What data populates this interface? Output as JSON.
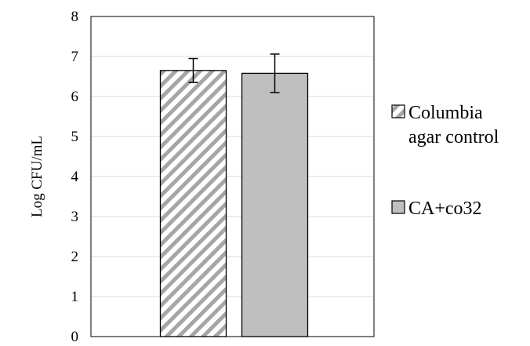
{
  "chart_data": {
    "type": "bar",
    "categories": [
      ""
    ],
    "series": [
      {
        "name": "Columbia agar control",
        "values": [
          6.65
        ],
        "error": [
          0.3
        ],
        "pattern": "hatch",
        "color": "#a6a6a6",
        "legend_lines": [
          "Columbia",
          "agar control"
        ]
      },
      {
        "name": "CA+co32",
        "values": [
          6.58
        ],
        "error": [
          0.48
        ],
        "pattern": "solid",
        "color": "#bfbfbf",
        "legend_lines": [
          "CA+co32"
        ]
      }
    ],
    "title": "",
    "xlabel": "",
    "ylabel": "Log CFU/mL",
    "ylim": [
      0,
      8
    ],
    "yticks": [
      "0",
      "1",
      "2",
      "3",
      "4",
      "5",
      "6",
      "7",
      "8"
    ],
    "grid": true,
    "legend_position": "right"
  }
}
